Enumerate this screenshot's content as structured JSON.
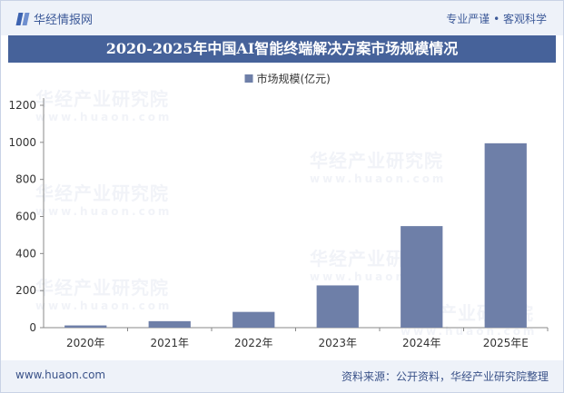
{
  "header": {
    "brand": "华经情报网",
    "slogan": "专业严谨 • 客观科学"
  },
  "title": "2020-2025年中国AI智能终端解决方案市场规模情况",
  "watermark": {
    "name": "华经产业研究院",
    "url": "www.huaon.com"
  },
  "footer": {
    "url": "www.huaon.com",
    "source": "资料来源：公开资料，华经产业研究院整理"
  },
  "colors": {
    "bar": "#6e7fa8",
    "title_bg": "#46629a",
    "axis": "#888888"
  },
  "chart_data": {
    "type": "bar",
    "categories": [
      "2020年",
      "2021年",
      "2022年",
      "2023年",
      "2024年",
      "2025年E"
    ],
    "series": [
      {
        "name": "市场规模(亿元)",
        "values": [
          12,
          35,
          85,
          228,
          548,
          995
        ]
      }
    ],
    "ylim": [
      0,
      1200
    ],
    "yticks": [
      0,
      200,
      400,
      600,
      800,
      1000,
      1200
    ],
    "legend": "top-center",
    "grid": false
  }
}
